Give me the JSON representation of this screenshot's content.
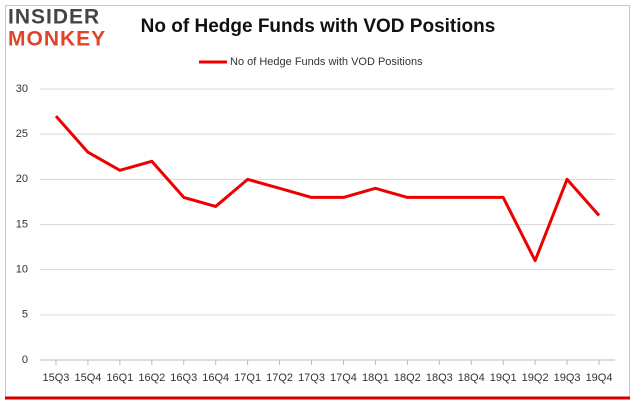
{
  "logo": {
    "line1": "INSIDER",
    "line2": "MONKEY"
  },
  "chart_data": {
    "type": "line",
    "title": "No of Hedge Funds with VOD Positions",
    "categories": [
      "15Q3",
      "15Q4",
      "16Q1",
      "16Q2",
      "16Q3",
      "16Q4",
      "17Q1",
      "17Q2",
      "17Q3",
      "17Q4",
      "18Q1",
      "18Q2",
      "18Q3",
      "18Q4",
      "19Q1",
      "19Q2",
      "19Q3",
      "19Q4"
    ],
    "series": [
      {
        "name": "No of Hedge Funds with VOD Positions",
        "color": "#ee0000",
        "values": [
          27,
          23,
          21,
          22,
          18,
          17,
          20,
          19,
          18,
          18,
          19,
          18,
          18,
          18,
          18,
          11,
          20,
          16
        ]
      }
    ],
    "ylim": [
      0,
      30
    ],
    "yticks": [
      0,
      5,
      10,
      15,
      20,
      25,
      30
    ],
    "grid": true,
    "legend": "top"
  }
}
